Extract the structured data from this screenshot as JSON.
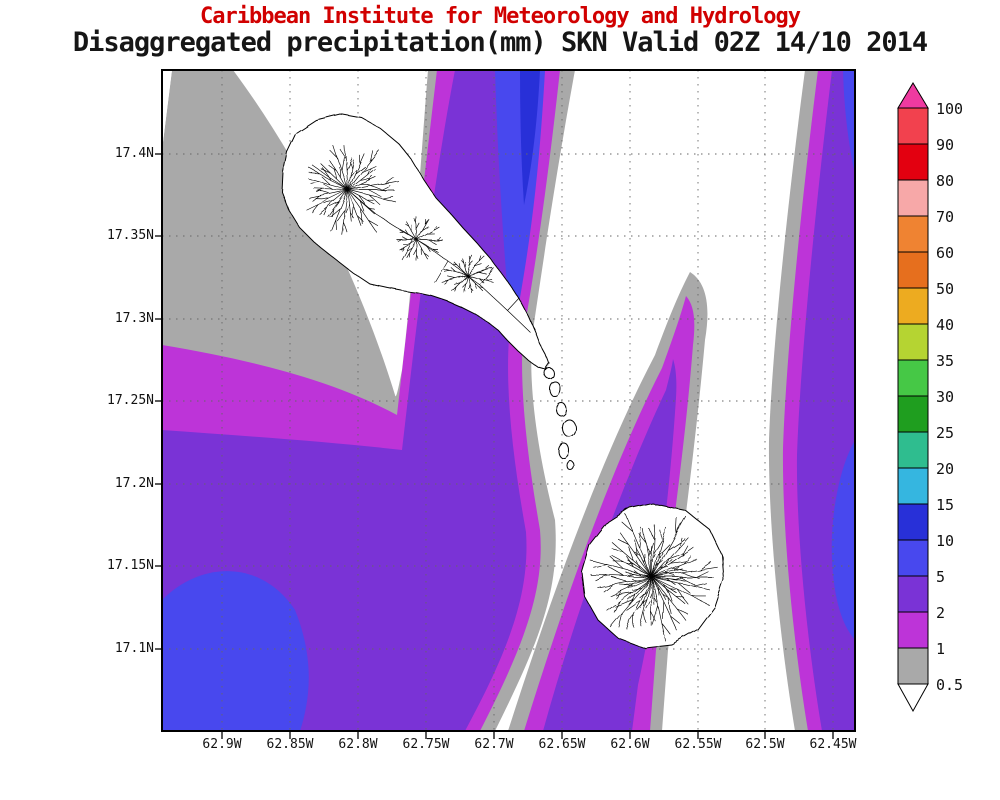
{
  "header": {
    "line1": "Caribbean Institute for Meteorology and Hydrology",
    "line2": "Disaggregated precipitation(mm) SKN Valid 02Z 14/10 2014"
  },
  "axes": {
    "y_labels": [
      "17.4N",
      "17.35N",
      "17.3N",
      "17.25N",
      "17.2N",
      "17.15N",
      "17.1N"
    ],
    "x_labels": [
      "62.9W",
      "62.85W",
      "62.8W",
      "62.75W",
      "62.7W",
      "62.65W",
      "62.6W",
      "62.55W",
      "62.5W",
      "62.45W"
    ]
  },
  "colorbar": {
    "labels": [
      "100",
      "90",
      "80",
      "70",
      "60",
      "50",
      "40",
      "35",
      "30",
      "25",
      "20",
      "15",
      "10",
      "5",
      "2",
      "1",
      "0.5"
    ],
    "band_colors": [
      "#f2414e",
      "#e30010",
      "#f7a8a8",
      "#ef8332",
      "#e66f1e",
      "#edab20",
      "#b5d432",
      "#46c846",
      "#1f9e1f",
      "#2fbd8f",
      "#35b6e0",
      "#2830d8",
      "#4848ee",
      "#7a33d6",
      "#bd34d8",
      "#a9a9a9"
    ],
    "cap_top_color": "#ef3aa0",
    "cap_bottom_color": "#ffffff"
  },
  "field_colors": {
    "white": "#ffffff",
    "gray": "#a9a9a9",
    "magenta": "#bd34d8",
    "purple": "#7a33d6",
    "blue": "#4848ee",
    "dark_blue": "#2830d8"
  }
}
